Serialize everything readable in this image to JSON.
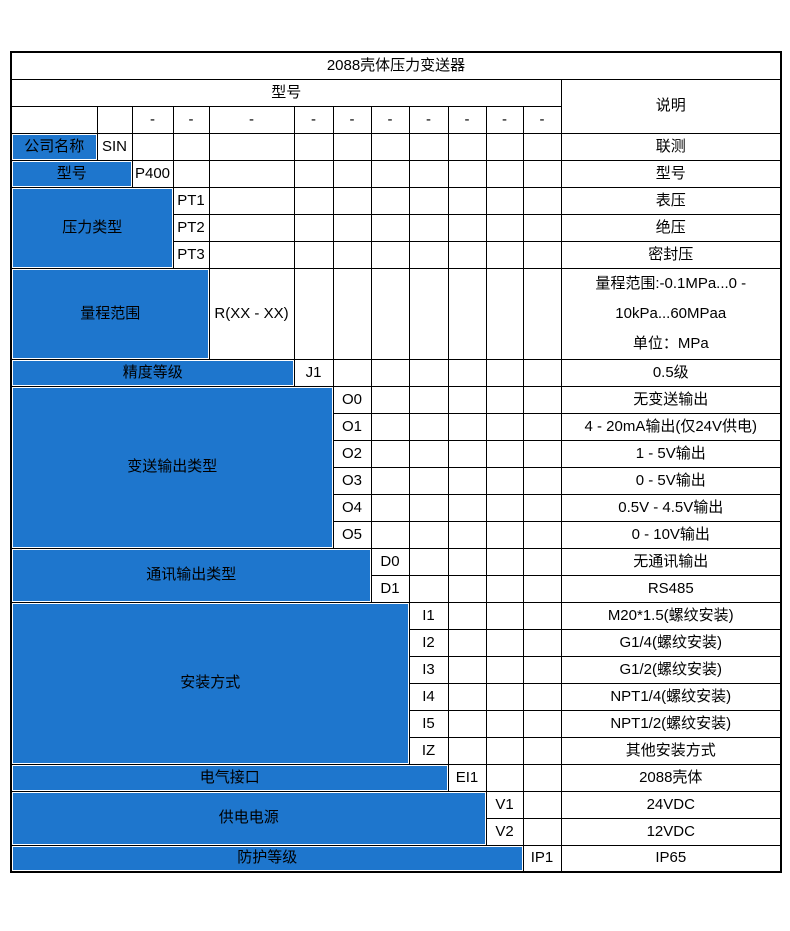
{
  "title": "2088壳体压力变送器",
  "header": {
    "model_label": "型号",
    "description_label": "说明",
    "dash": "-"
  },
  "colors": {
    "label_bg": "#1E76CD",
    "label_text": "#FFFFFF",
    "grid_border": "#000000",
    "cell_text": "#000000",
    "page_bg": "#FFFFFF"
  },
  "sections": [
    {
      "label": "公司名称",
      "label_colspan": 1,
      "rows": [
        {
          "code": "SIN",
          "desc": "联测"
        }
      ]
    },
    {
      "label": "型号",
      "label_colspan": 2,
      "rows": [
        {
          "code": "P400",
          "desc": "型号"
        }
      ]
    },
    {
      "label": "压力类型",
      "label_colspan": 3,
      "rows": [
        {
          "code": "PT1",
          "desc": "表压"
        },
        {
          "code": "PT2",
          "desc": "绝压"
        },
        {
          "code": "PT3",
          "desc": "密封压"
        }
      ]
    },
    {
      "label": "量程范围",
      "label_colspan": 4,
      "tall_row": true,
      "rows": [
        {
          "code": "R(XX - XX)",
          "desc": "量程范围:-0.1MPa...0 -\n10kPa...60MPaa\n单位：MPa"
        }
      ]
    },
    {
      "label": "精度等级",
      "label_colspan": 5,
      "rows": [
        {
          "code": "J1",
          "desc": "0.5级"
        }
      ]
    },
    {
      "label": "变送输出类型",
      "label_colspan": 6,
      "rows": [
        {
          "code": "O0",
          "desc": "无变送输出"
        },
        {
          "code": "O1",
          "desc": "4 - 20mA输出(仅24V供电)"
        },
        {
          "code": "O2",
          "desc": "1 - 5V输出"
        },
        {
          "code": "O3",
          "desc": "0 - 5V输出"
        },
        {
          "code": "O4",
          "desc": "0.5V - 4.5V输出"
        },
        {
          "code": "O5",
          "desc": "0 - 10V输出"
        }
      ]
    },
    {
      "label": "通讯输出类型",
      "label_colspan": 7,
      "rows": [
        {
          "code": "D0",
          "desc": "无通讯输出"
        },
        {
          "code": "D1",
          "desc": "RS485"
        }
      ]
    },
    {
      "label": "安装方式",
      "label_colspan": 8,
      "rows": [
        {
          "code": "I1",
          "desc": "M20*1.5(螺纹安装)"
        },
        {
          "code": "I2",
          "desc": "G1/4(螺纹安装)"
        },
        {
          "code": "I3",
          "desc": "G1/2(螺纹安装)"
        },
        {
          "code": "I4",
          "desc": "NPT1/4(螺纹安装)"
        },
        {
          "code": "I5",
          "desc": "NPT1/2(螺纹安装)"
        },
        {
          "code": "IZ",
          "desc": "其他安装方式"
        }
      ]
    },
    {
      "label": "电气接口",
      "label_colspan": 9,
      "rows": [
        {
          "code": "EI1",
          "desc": "2088壳体"
        }
      ]
    },
    {
      "label": "供电电源",
      "label_colspan": 10,
      "rows": [
        {
          "code": "V1",
          "desc": "24VDC"
        },
        {
          "code": "V2",
          "desc": "12VDC"
        }
      ]
    },
    {
      "label": "防护等级",
      "label_colspan": 11,
      "last_row": true,
      "rows": [
        {
          "code": "IP1",
          "desc": "IP65"
        }
      ]
    }
  ]
}
